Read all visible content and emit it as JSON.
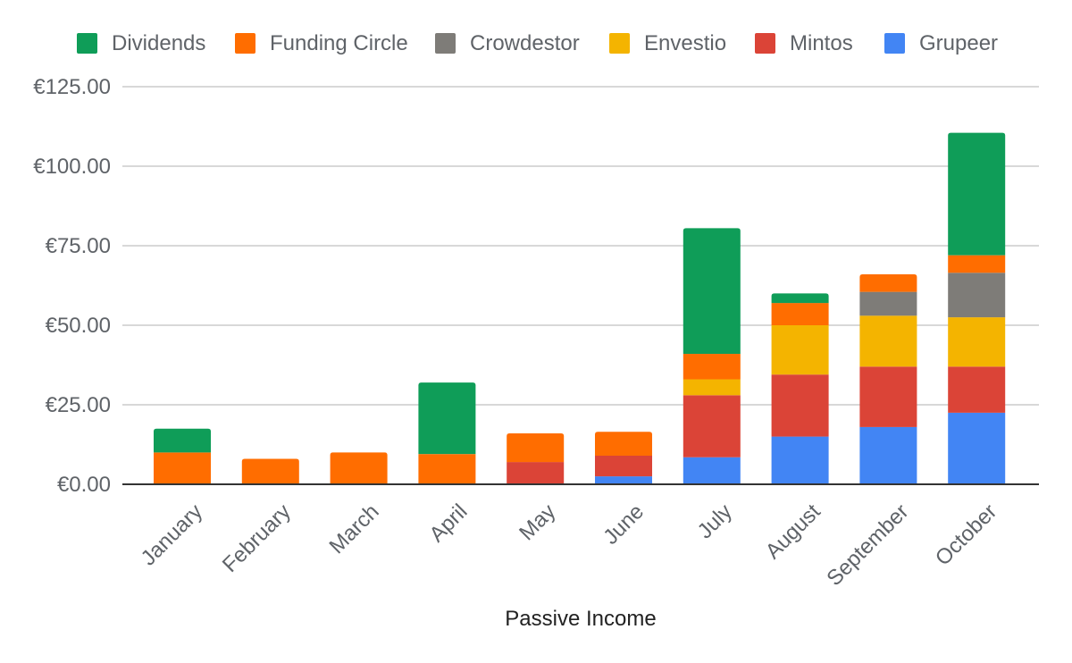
{
  "chart_data": {
    "type": "bar",
    "stacked": true,
    "title": "",
    "xlabel": "Passive Income",
    "ylabel": "",
    "ylim": [
      0,
      125
    ],
    "yticks": [
      0,
      25,
      50,
      75,
      100,
      125
    ],
    "ytick_labels": [
      "€0.00",
      "€25.00",
      "€50.00",
      "€75.00",
      "€100.00",
      "€125.00"
    ],
    "legend_position": "top",
    "grid": true,
    "categories": [
      "January",
      "February",
      "March",
      "April",
      "May",
      "June",
      "July",
      "August",
      "September",
      "October"
    ],
    "series": [
      {
        "name": "Grupeer",
        "color": "#4285f4",
        "values": [
          0,
          0,
          0,
          0,
          0,
          2.5,
          8.5,
          15,
          18,
          22.5
        ]
      },
      {
        "name": "Mintos",
        "color": "#db4437",
        "values": [
          0,
          0,
          0,
          0,
          7,
          6.5,
          19.5,
          19.5,
          19,
          14.5
        ]
      },
      {
        "name": "Envestio",
        "color": "#f4b400",
        "values": [
          0,
          0,
          0,
          0,
          0,
          0,
          5,
          15.5,
          16,
          15.5
        ]
      },
      {
        "name": "Crowdestor",
        "color": "#7e7c78",
        "values": [
          0,
          0,
          0,
          0,
          0,
          0,
          0,
          0,
          7.5,
          14
        ]
      },
      {
        "name": "Funding Circle",
        "color": "#ff6d00",
        "values": [
          10,
          8,
          10,
          9.5,
          9,
          7.5,
          8,
          7,
          5.5,
          5.5
        ]
      },
      {
        "name": "Dividends",
        "color": "#0f9d58",
        "values": [
          7.5,
          0,
          0,
          22.5,
          0,
          0,
          39.5,
          3,
          0,
          38.5
        ]
      }
    ],
    "legend_order": [
      "Dividends",
      "Funding Circle",
      "Crowdestor",
      "Envestio",
      "Mintos",
      "Grupeer"
    ]
  }
}
